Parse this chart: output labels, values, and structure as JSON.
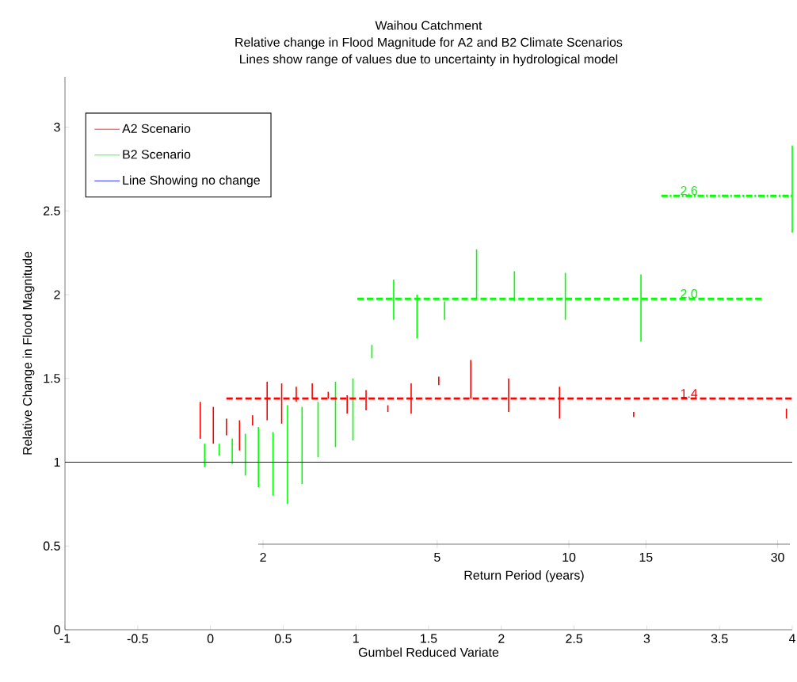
{
  "chart_data": {
    "type": "bar",
    "title": "Waihou Catchment",
    "subtitle": "Relative change in Flood Magnitude for A2 and B2 Climate Scenarios",
    "xlabel": "Gumbel Reduced Variate",
    "ylabel": "Relative Change in Flood Magnitude",
    "x2label": "Return Period (years)",
    "xlim": [
      -1,
      4
    ],
    "xticks": [
      -1,
      -0.5,
      0,
      0.5,
      1,
      1.5,
      2,
      2.5,
      3,
      3.5,
      4
    ],
    "ylim": [
      0,
      3.3
    ],
    "yticks": [
      0,
      0.5,
      1,
      1.5,
      2,
      2.5,
      3
    ],
    "x2lim": [
      1.95,
      32
    ],
    "x2ticks": [
      2,
      5,
      10,
      15,
      30
    ],
    "log": "x2",
    "legend": "top left",
    "series": [
      {
        "name": "A2 Scenario",
        "color": "#ff0000",
        "x": [
          -0.07,
          0.02,
          0.11,
          0.2,
          0.29,
          0.39,
          0.49,
          0.59,
          0.7,
          0.81,
          0.94,
          1.07,
          1.22,
          1.38,
          1.57,
          1.79,
          2.05,
          2.4,
          2.91,
          3.96
        ],
        "base": [
          1.14,
          1.11,
          1.16,
          1.07,
          1.22,
          1.25,
          1.23,
          1.36,
          1.38,
          1.38,
          1.29,
          1.31,
          1.3,
          1.29,
          1.46,
          1.38,
          1.3,
          1.26,
          1.27,
          1.26
        ],
        "values": [
          0.22,
          0.22,
          0.1,
          0.18,
          0.06,
          0.23,
          0.24,
          0.09,
          0.09,
          0.04,
          0.11,
          0.12,
          0.04,
          0.18,
          0.05,
          0.23,
          0.2,
          0.19,
          0.03,
          0.06
        ]
      },
      {
        "name": "B2 Scenario",
        "color": "#00ff00",
        "x": [
          -0.04,
          0.06,
          0.15,
          0.24,
          0.33,
          0.43,
          0.53,
          0.63,
          0.74,
          0.86,
          0.98,
          1.11,
          1.26,
          1.42,
          1.61,
          1.83,
          2.09,
          2.44,
          2.96,
          4.0
        ],
        "base": [
          0.97,
          1.04,
          0.99,
          0.92,
          0.85,
          0.8,
          0.75,
          0.87,
          1.03,
          1.09,
          1.13,
          1.62,
          1.85,
          1.74,
          1.85,
          1.98,
          1.96,
          1.85,
          1.72,
          2.37
        ],
        "values": [
          0.14,
          0.07,
          0.15,
          0.25,
          0.36,
          0.38,
          0.59,
          0.46,
          0.33,
          0.39,
          0.37,
          0.08,
          0.24,
          0.26,
          0.11,
          0.29,
          0.18,
          0.28,
          0.4,
          0.52
        ]
      },
      {
        "name": "Line Showing no change",
        "type": "line",
        "color": "#0000ff",
        "x": [
          -1,
          4
        ],
        "values": [
          1,
          1
        ]
      },
      {
        "type": "line",
        "color": "#ff0000",
        "line_style": "dashed",
        "x": [
          0.11,
          3.29,
          4
        ],
        "values": [
          1.38,
          1.38,
          1.38
        ],
        "value_labels": [
          null,
          "1.4",
          null
        ]
      },
      {
        "type": "line",
        "color": "#00ff00",
        "line_style": "dashed",
        "x": [
          1.01,
          3.29,
          3.81
        ],
        "values": [
          1.975,
          1.975,
          1.975
        ],
        "value_labels": [
          null,
          "2.0",
          null
        ]
      },
      {
        "type": "line",
        "color": "#00ff00",
        "line_style": "dashdot",
        "x": [
          3.1,
          3.29,
          4
        ],
        "values": [
          2.59,
          2.59,
          2.59
        ],
        "value_labels": [
          null,
          "2.6",
          null
        ]
      }
    ],
    "annotations": [
      "Lines show range of values due to uncertainty in hydrological model"
    ]
  }
}
